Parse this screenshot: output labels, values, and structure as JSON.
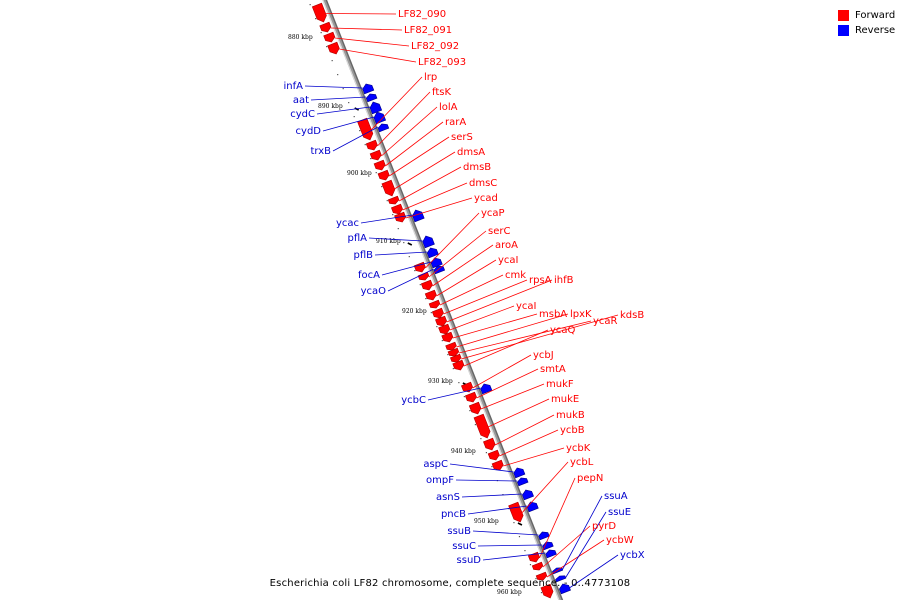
{
  "legend": [
    {
      "label": "Forward",
      "color": "#ff0000"
    },
    {
      "label": "Reverse",
      "color": "#0000ff"
    }
  ],
  "caption": "Escherichia coli LF82 chromosome, complete sequence. - 0..4773108",
  "colors": {
    "forward": "#ff0000",
    "reverse": "#0000ff",
    "backbone": "#999999"
  },
  "ticks": [
    "880 kbp",
    "890 kbp",
    "900 kbp",
    "910 kbp",
    "920 kbp",
    "930 kbp",
    "940 kbp",
    "950 kbp",
    "960 kbp"
  ],
  "forward_labels": [
    "LF82_090",
    "LF82_091",
    "LF82_092",
    "LF82_093",
    "lrp",
    "ftsK",
    "lolA",
    "rarA",
    "serS",
    "dmsA",
    "dmsB",
    "dmsC",
    "ycad",
    "ycaP",
    "serC",
    "aroA",
    "ycaI",
    "cmk",
    "rpsA",
    "ihfB",
    "ycaI",
    "msbA",
    "lpxK",
    "ycaR",
    "kdsB",
    "ycaQ",
    "ycbJ",
    "smtA",
    "mukF",
    "mukE",
    "mukB",
    "ycbB",
    "ycbK",
    "ycbL",
    "pepN",
    "pyrD",
    "ycbW"
  ],
  "reverse_labels": [
    "infA",
    "aat",
    "cydC",
    "cydD",
    "trxB",
    "ycac",
    "pflA",
    "pflB",
    "focA",
    "ycaO",
    "ycbC",
    "aspC",
    "ompF",
    "asnS",
    "pncB",
    "ssuB",
    "ssuC",
    "ssuD",
    "ssuA",
    "ssuE",
    "ycbX"
  ]
}
